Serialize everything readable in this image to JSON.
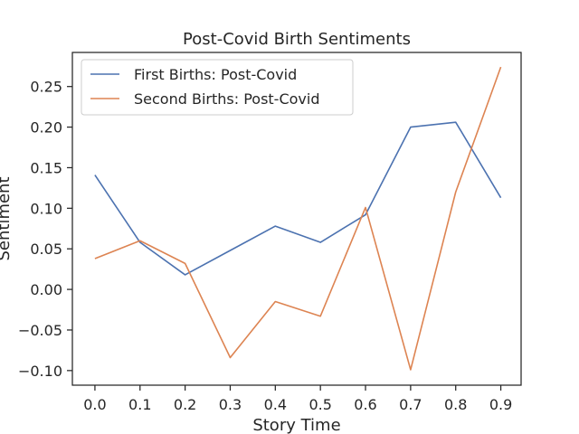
{
  "chart_data": {
    "type": "line",
    "title": "Post-Covid Birth Sentiments",
    "xlabel": "Story Time",
    "ylabel": "Sentiment",
    "x": [
      0.0,
      0.1,
      0.2,
      0.3,
      0.4,
      0.5,
      0.6,
      0.7,
      0.8,
      0.9
    ],
    "xticks": [
      "0.0",
      "0.1",
      "0.2",
      "0.3",
      "0.4",
      "0.5",
      "0.6",
      "0.7",
      "0.8",
      "0.9"
    ],
    "xlim": [
      -0.05,
      0.945
    ],
    "yticks": [
      "−0.10",
      "−0.05",
      "0.00",
      "0.05",
      "0.10",
      "0.15",
      "0.20",
      "0.25"
    ],
    "ytick_values": [
      -0.1,
      -0.05,
      0.0,
      0.05,
      0.1,
      0.15,
      0.2,
      0.25
    ],
    "ylim": [
      -0.118,
      0.292
    ],
    "grid": false,
    "legend_position": "top-left",
    "series": [
      {
        "name": "First Births: Post-Covid",
        "color": "#4c72b0",
        "values": [
          0.141,
          0.058,
          0.018,
          0.048,
          0.078,
          0.058,
          0.092,
          0.2,
          0.206,
          0.113
        ]
      },
      {
        "name": "Second Births: Post-Covid",
        "color": "#dd8452",
        "values": [
          0.038,
          0.06,
          0.032,
          -0.084,
          -0.015,
          -0.033,
          0.101,
          -0.099,
          0.12,
          0.274
        ]
      }
    ]
  }
}
